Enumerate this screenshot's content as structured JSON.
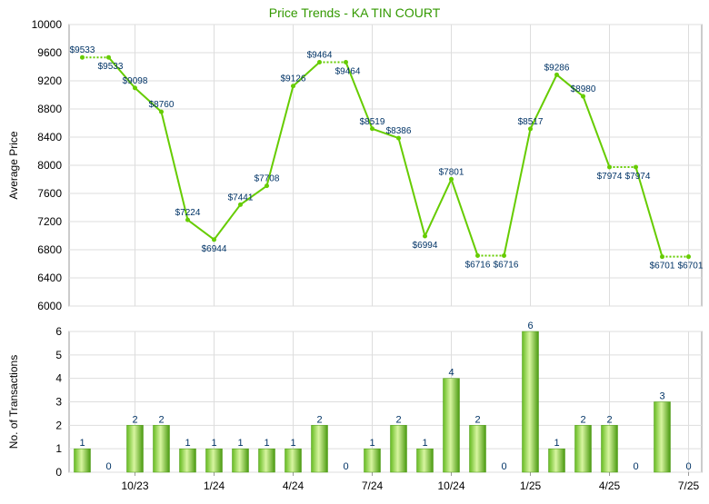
{
  "chart_data": [
    {
      "type": "line",
      "title": "Price Trends - KA TIN COURT",
      "ylabel": "Average Price",
      "ylim": [
        6000,
        10000
      ],
      "yticks": [
        6000,
        6400,
        6800,
        7200,
        7600,
        8000,
        8400,
        8800,
        9200,
        9600,
        10000
      ],
      "series": [
        {
          "points": [
            {
              "i": 0,
              "value": 9533,
              "label": "$9533"
            },
            {
              "i": 1,
              "value": 9533,
              "label": "$9533"
            },
            {
              "i": 2,
              "value": 9098,
              "label": "$9098"
            },
            {
              "i": 3,
              "value": 8760,
              "label": "$8760"
            },
            {
              "i": 4,
              "value": 7224,
              "label": "$7224"
            },
            {
              "i": 5,
              "value": 6944,
              "label": "$6944"
            },
            {
              "i": 6,
              "value": 7441,
              "label": "$7441"
            },
            {
              "i": 7,
              "value": 7708,
              "label": "$7708"
            },
            {
              "i": 8,
              "value": 9126,
              "label": "$9126"
            },
            {
              "i": 9,
              "value": 9464,
              "label": "$9464"
            },
            {
              "i": 10,
              "value": 9464,
              "label": "$9464"
            },
            {
              "i": 11,
              "value": 8519,
              "label": "$8519"
            },
            {
              "i": 12,
              "value": 8386,
              "label": "$8386"
            },
            {
              "i": 13,
              "value": 6994,
              "label": "$6994"
            },
            {
              "i": 14,
              "value": 7801,
              "label": "$7801"
            },
            {
              "i": 15,
              "value": 6716,
              "label": "$6716"
            },
            {
              "i": 16,
              "value": 6716,
              "label": "$6716"
            },
            {
              "i": 17,
              "value": 8517,
              "label": "$8517"
            },
            {
              "i": 18,
              "value": 9286,
              "label": "$9286"
            },
            {
              "i": 19,
              "value": 8980,
              "label": "$8980"
            },
            {
              "i": 20,
              "value": 7974,
              "label": "$7974"
            },
            {
              "i": 21,
              "value": 7974,
              "label": "$7974"
            },
            {
              "i": 22,
              "value": 6701,
              "label": "$6701"
            },
            {
              "i": 23,
              "value": 6701,
              "label": "$6701"
            }
          ],
          "carried_forward_segments": [
            [
              0,
              1
            ],
            [
              9,
              10
            ],
            [
              15,
              16
            ],
            [
              20,
              21
            ],
            [
              22,
              23
            ]
          ]
        }
      ],
      "grid": true,
      "colors": {
        "line": "#66cc00",
        "dotted": "#66cc00",
        "title": "#339900",
        "data_label": "#003366"
      }
    },
    {
      "type": "bar",
      "ylabel": "No. of Transactions",
      "ylim": [
        0,
        6
      ],
      "yticks": [
        0,
        1,
        2,
        3,
        4,
        5,
        6
      ],
      "x_ticks": [
        {
          "i": 2,
          "label": "10/23"
        },
        {
          "i": 5,
          "label": "1/24"
        },
        {
          "i": 8,
          "label": "4/24"
        },
        {
          "i": 11,
          "label": "7/24"
        },
        {
          "i": 14,
          "label": "10/24"
        },
        {
          "i": 17,
          "label": "1/25"
        },
        {
          "i": 20,
          "label": "4/25"
        },
        {
          "i": 23,
          "label": "7/25"
        }
      ],
      "values": [
        1,
        0,
        2,
        2,
        1,
        1,
        1,
        1,
        1,
        2,
        0,
        1,
        2,
        1,
        4,
        2,
        0,
        6,
        1,
        2,
        2,
        0,
        3,
        0
      ],
      "grid": true,
      "colors": {
        "bar_light": "#ccf08a",
        "bar_dark": "#55aa11",
        "label": "#003366"
      }
    }
  ]
}
